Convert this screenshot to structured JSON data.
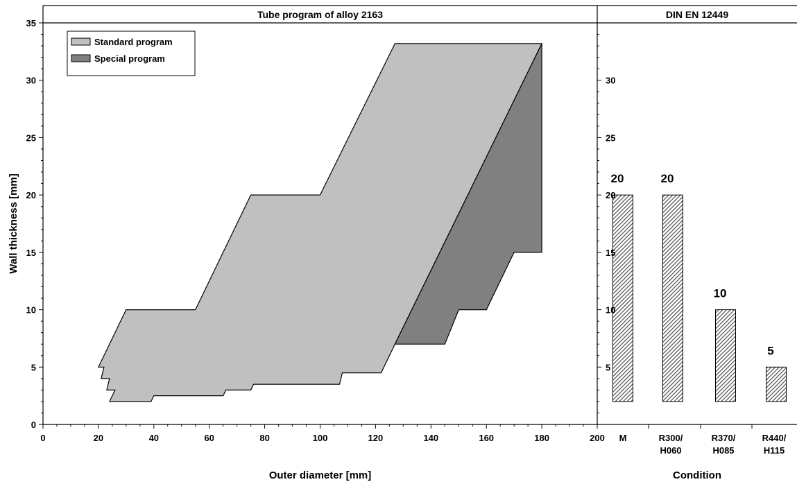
{
  "colors": {
    "standard": "#c0c0c0",
    "special": "#808080",
    "bar_hatch": "#4d4d4d"
  },
  "chart_data": [
    {
      "type": "area",
      "title": "Tube program of alloy 2163",
      "xlabel": "Outer diameter [mm]",
      "ylabel": "Wall thickness [mm]",
      "xlim": [
        0,
        200
      ],
      "ylim": [
        0,
        35
      ],
      "x_ticks": [
        "0",
        "20",
        "40",
        "60",
        "80",
        "100",
        "120",
        "140",
        "160",
        "180",
        "200"
      ],
      "y_ticks": [
        "0",
        "5",
        "10",
        "15",
        "20",
        "25",
        "30",
        "35"
      ],
      "legend": {
        "position": "top-left",
        "entries": [
          {
            "name": "Standard program",
            "color": "#c0c0c0"
          },
          {
            "name": "Special program",
            "color": "#808080"
          }
        ]
      },
      "series": [
        {
          "name": "Standard program",
          "color": "#c0c0c0",
          "points": [
            [
              20,
              5
            ],
            [
              30,
              10
            ],
            [
              55,
              10
            ],
            [
              75,
              20
            ],
            [
              100,
              20
            ],
            [
              127,
              33.2
            ],
            [
              180,
              33.2
            ],
            [
              127,
              7
            ],
            [
              122,
              4.5
            ],
            [
              108,
              4.5
            ],
            [
              107,
              3.5
            ],
            [
              76,
              3.5
            ],
            [
              75,
              3
            ],
            [
              66,
              3
            ],
            [
              65,
              2.5
            ],
            [
              40,
              2.5
            ],
            [
              39,
              2
            ],
            [
              24,
              2
            ],
            [
              26,
              3
            ],
            [
              23,
              3
            ],
            [
              24,
              4
            ],
            [
              21,
              4
            ],
            [
              22,
              5
            ]
          ]
        },
        {
          "name": "Special program",
          "color": "#808080",
          "points": [
            [
              180,
              33.2
            ],
            [
              180,
              15
            ],
            [
              170,
              15
            ],
            [
              160,
              10
            ],
            [
              150,
              10
            ],
            [
              145,
              7
            ],
            [
              127,
              7
            ]
          ]
        }
      ]
    },
    {
      "type": "bar",
      "title": "DIN EN 12449",
      "xlabel": "Condition",
      "categories": [
        {
          "line1": "M",
          "line2": ""
        },
        {
          "line1": "R300/",
          "line2": "H060"
        },
        {
          "line1": "R370/",
          "line2": "H085"
        },
        {
          "line1": "R440/",
          "line2": "H115"
        }
      ],
      "values": [
        20,
        20,
        10,
        5
      ],
      "labels": [
        "20",
        "20",
        "10",
        "5"
      ],
      "bar_base": 2,
      "y_ticks": [
        "5",
        "10",
        "15",
        "20",
        "25",
        "30"
      ],
      "ylim": [
        0,
        35
      ]
    }
  ]
}
